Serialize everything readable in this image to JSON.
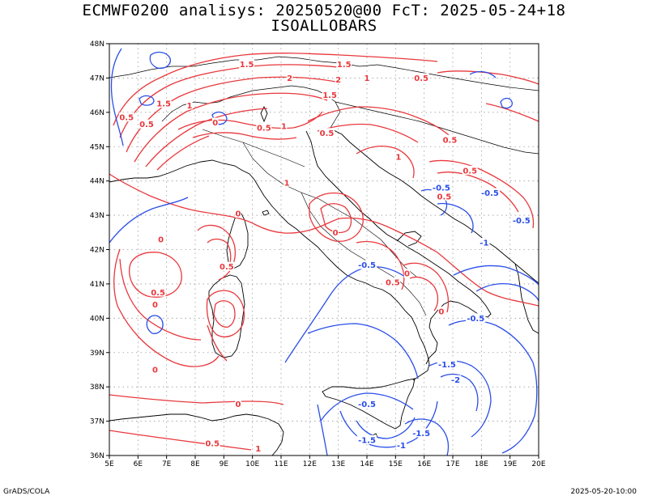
{
  "header": {
    "title_line1": "ECMWF0200 analisys: 20250520@00 FcT: 2025-05-24+18",
    "title_line2": "ISOALLOBARS"
  },
  "map": {
    "lon_ticks": [
      "5E",
      "6E",
      "7E",
      "8E",
      "9E",
      "10E",
      "11E",
      "12E",
      "13E",
      "14E",
      "15E",
      "16E",
      "17E",
      "18E",
      "19E",
      "20E"
    ],
    "lat_ticks": [
      "48N",
      "47N",
      "46N",
      "45N",
      "44N",
      "43N",
      "42N",
      "41N",
      "40N",
      "39N",
      "38N",
      "37N",
      "36N"
    ],
    "colors": {
      "positive": "#e8383d",
      "negative": "#2a4ee8",
      "coast": "#000000",
      "grid": "#9a9a9a"
    },
    "contour_labels": [
      {
        "text": "0",
        "sign": "pos",
        "lon": 6.8,
        "lat": 42.3
      },
      {
        "text": "0.5",
        "sign": "pos",
        "lon": 6.7,
        "lat": 40.75
      },
      {
        "text": "0",
        "sign": "pos",
        "lon": 6.6,
        "lat": 40.4
      },
      {
        "text": "0",
        "sign": "pos",
        "lon": 6.6,
        "lat": 38.5
      },
      {
        "text": "0",
        "sign": "pos",
        "lon": 9.5,
        "lat": 37.5
      },
      {
        "text": "0.5",
        "sign": "pos",
        "lon": 8.6,
        "lat": 36.35
      },
      {
        "text": "1",
        "sign": "pos",
        "lon": 10.2,
        "lat": 36.2
      },
      {
        "text": "0.5",
        "sign": "pos",
        "lon": 9.1,
        "lat": 41.5
      },
      {
        "text": "0",
        "sign": "pos",
        "lon": 9.5,
        "lat": 43.05
      },
      {
        "text": "0.5",
        "sign": "pos",
        "lon": 5.6,
        "lat": 45.85
      },
      {
        "text": "0.5",
        "sign": "pos",
        "lon": 6.3,
        "lat": 45.65
      },
      {
        "text": "1.5",
        "sign": "pos",
        "lon": 6.9,
        "lat": 46.25
      },
      {
        "text": "1",
        "sign": "pos",
        "lon": 7.8,
        "lat": 46.2
      },
      {
        "text": "0",
        "sign": "pos",
        "lon": 8.7,
        "lat": 45.7
      },
      {
        "text": "0.5",
        "sign": "pos",
        "lon": 10.4,
        "lat": 45.55
      },
      {
        "text": "1",
        "sign": "pos",
        "lon": 11.1,
        "lat": 45.6
      },
      {
        "text": "1.5",
        "sign": "pos",
        "lon": 9.8,
        "lat": 47.4
      },
      {
        "text": "2",
        "sign": "pos",
        "lon": 11.3,
        "lat": 47.0
      },
      {
        "text": "1.5",
        "sign": "pos",
        "lon": 13.2,
        "lat": 47.4
      },
      {
        "text": "2",
        "sign": "pos",
        "lon": 13.0,
        "lat": 46.95
      },
      {
        "text": "1",
        "sign": "pos",
        "lon": 14.0,
        "lat": 47.0
      },
      {
        "text": "0.5",
        "sign": "pos",
        "lon": 15.9,
        "lat": 47.0
      },
      {
        "text": "1.5",
        "sign": "pos",
        "lon": 12.7,
        "lat": 46.5
      },
      {
        "text": "0.5",
        "sign": "pos",
        "lon": 12.6,
        "lat": 45.4
      },
      {
        "text": "0.5",
        "sign": "pos",
        "lon": 16.9,
        "lat": 45.2
      },
      {
        "text": "1",
        "sign": "pos",
        "lon": 15.1,
        "lat": 44.7
      },
      {
        "text": "0.5",
        "sign": "pos",
        "lon": 17.6,
        "lat": 44.3
      },
      {
        "text": "0.5",
        "sign": "pos",
        "lon": 16.7,
        "lat": 43.55
      },
      {
        "text": "1",
        "sign": "pos",
        "lon": 11.2,
        "lat": 43.95
      },
      {
        "text": "0",
        "sign": "pos",
        "lon": 12.9,
        "lat": 42.5
      },
      {
        "text": "0",
        "sign": "pos",
        "lon": 15.4,
        "lat": 41.3
      },
      {
        "text": "0.5",
        "sign": "pos",
        "lon": 14.9,
        "lat": 41.05
      },
      {
        "text": "0",
        "sign": "pos",
        "lon": 16.6,
        "lat": 40.2
      },
      {
        "text": "-0.5",
        "sign": "neg",
        "lon": 16.6,
        "lat": 43.8
      },
      {
        "text": "-0.5",
        "sign": "neg",
        "lon": 18.3,
        "lat": 43.65
      },
      {
        "text": "-0.5",
        "sign": "neg",
        "lon": 19.4,
        "lat": 42.85
      },
      {
        "text": "-1",
        "sign": "neg",
        "lon": 18.1,
        "lat": 42.2
      },
      {
        "text": "-0.5",
        "sign": "neg",
        "lon": 14.0,
        "lat": 41.55
      },
      {
        "text": "-0.5",
        "sign": "neg",
        "lon": 17.8,
        "lat": 40.0
      },
      {
        "text": "-1.5",
        "sign": "neg",
        "lon": 16.8,
        "lat": 38.65
      },
      {
        "text": "-2",
        "sign": "neg",
        "lon": 17.1,
        "lat": 38.2
      },
      {
        "text": "-0.5",
        "sign": "neg",
        "lon": 14.0,
        "lat": 37.5
      },
      {
        "text": "-1.5",
        "sign": "neg",
        "lon": 14.0,
        "lat": 36.45
      },
      {
        "text": "-1.5",
        "sign": "neg",
        "lon": 15.9,
        "lat": 36.65
      },
      {
        "text": "-1",
        "sign": "neg",
        "lon": 15.2,
        "lat": 36.3
      }
    ]
  },
  "footer": {
    "left": "GrADS/COLA",
    "right": "2025-05-20-10:00"
  }
}
